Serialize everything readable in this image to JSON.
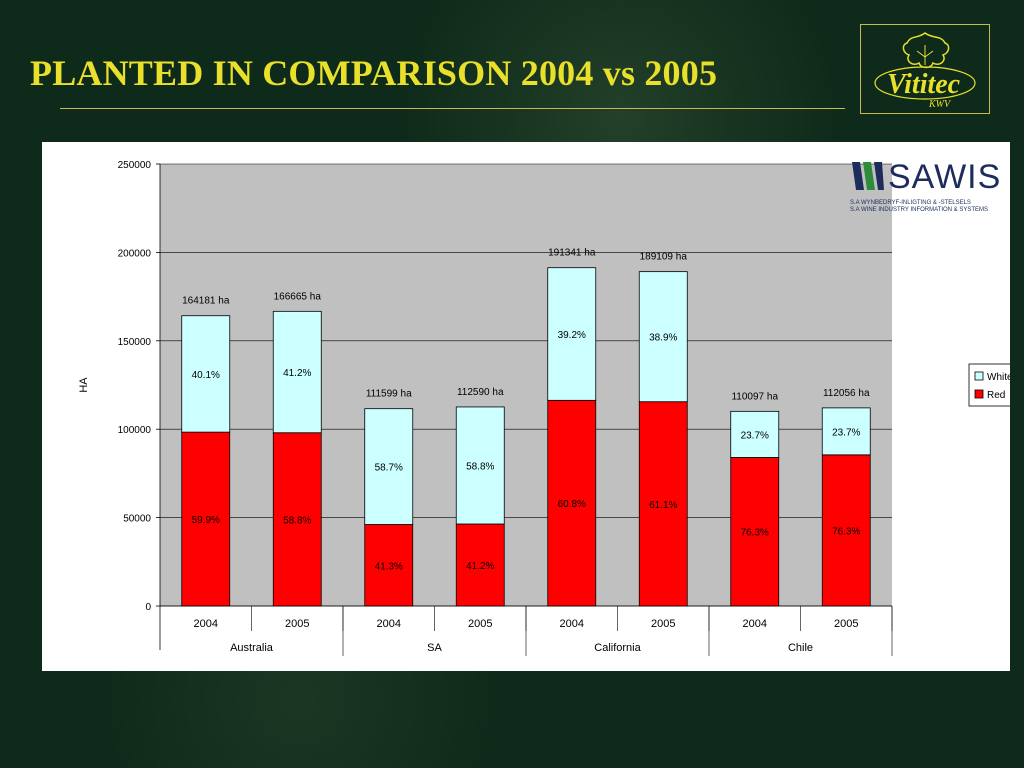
{
  "slide": {
    "title": "PLANTED IN COMPARISON 2004 vs 2005",
    "logo_text": "Vititec",
    "logo_sub": "KWV",
    "sawis_name": "SAWIS",
    "sawis_line1": "S.A WYNBEDRYF-INLIGTING & -STELSELS",
    "sawis_line2": "S.A WINE INDUSTRY INFORMATION & SYSTEMS"
  },
  "chart_data": {
    "type": "bar",
    "stacked": true,
    "ylabel": "HA",
    "ylim": [
      0,
      250000
    ],
    "yticks": [
      0,
      50000,
      100000,
      150000,
      200000,
      250000
    ],
    "ytick_labels": [
      "0",
      "50000",
      "100000",
      "150000",
      "200000",
      "250000"
    ],
    "grid": true,
    "legend_position": "right",
    "groups": [
      "Australia",
      "SA",
      "California",
      "Chile"
    ],
    "categories": [
      "2004",
      "2005",
      "2004",
      "2005",
      "2004",
      "2005",
      "2004",
      "2005"
    ],
    "totals": [
      164181,
      166665,
      111599,
      112590,
      191341,
      189109,
      110097,
      112056
    ],
    "total_labels": [
      "164181 ha",
      "166665 ha",
      "111599 ha",
      "112590 ha",
      "191341 ha",
      "189109 ha",
      "110097 ha",
      "112056 ha"
    ],
    "series": [
      {
        "name": "Red",
        "color": "#ff0000",
        "values": [
          98344,
          97999,
          46090,
          46387,
          116335,
          115546,
          84004,
          85499
        ],
        "labels": [
          "59.9%",
          "58.8%",
          "41.3%",
          "41.2%",
          "60.8%",
          "61.1%",
          "76.3%",
          "76.3%"
        ]
      },
      {
        "name": "White",
        "color": "#ccffff",
        "values": [
          65837,
          68666,
          65509,
          66203,
          75006,
          73563,
          26093,
          26557
        ],
        "labels": [
          "40.1%",
          "41.2%",
          "58.7%",
          "58.8%",
          "39.2%",
          "38.9%",
          "23.7%",
          "23.7%"
        ]
      }
    ],
    "colors": {
      "plot_bg": "#c0c0c0",
      "red": "#ff0000",
      "white": "#ccffff"
    }
  }
}
